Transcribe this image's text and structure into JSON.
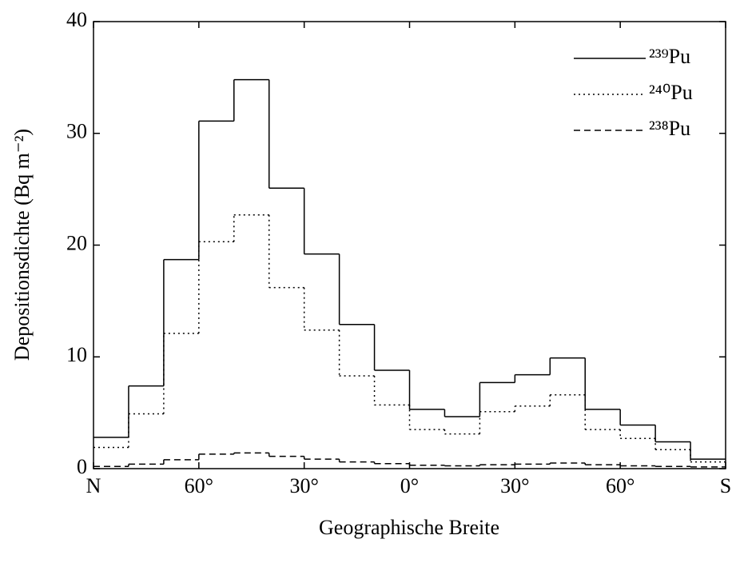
{
  "chart_data": {
    "type": "histogram",
    "xlabel": "Geographische Breite",
    "ylabel": "Depositionsdichte (Bq m⁻²)",
    "bins": [
      90,
      80,
      70,
      60,
      50,
      40,
      30,
      20,
      10,
      0,
      -10,
      -20,
      -30,
      -40,
      -50,
      -60,
      -70,
      -80,
      -90
    ],
    "series": [
      {
        "name": "²³⁹Pu",
        "color": "#000000",
        "dash": "solid",
        "values": [
          2.8,
          7.4,
          18.7,
          31.1,
          34.8,
          25.1,
          19.2,
          12.9,
          8.8,
          5.3,
          4.65,
          7.7,
          8.4,
          9.9,
          5.3,
          3.9,
          2.4,
          0.85
        ]
      },
      {
        "name": "²⁴⁰Pu",
        "color": "#000000",
        "dash": "dotted",
        "values": [
          1.9,
          4.9,
          12.1,
          20.3,
          22.7,
          16.2,
          12.4,
          8.3,
          5.7,
          3.5,
          3.1,
          5.1,
          5.6,
          6.6,
          3.5,
          2.7,
          1.7,
          0.6
        ]
      },
      {
        "name": "²³⁸Pu",
        "color": "#000000",
        "dash": "dashed",
        "values": [
          0.2,
          0.4,
          0.8,
          1.3,
          1.4,
          1.1,
          0.85,
          0.6,
          0.45,
          0.3,
          0.25,
          0.35,
          0.4,
          0.5,
          0.35,
          0.25,
          0.2,
          0.15
        ]
      }
    ],
    "xlim": [
      90,
      -90
    ],
    "xticks": [
      {
        "value": 90,
        "label": "N"
      },
      {
        "value": 60,
        "label": "60°"
      },
      {
        "value": 30,
        "label": "30°"
      },
      {
        "value": 0,
        "label": "0°"
      },
      {
        "value": -30,
        "label": "30°"
      },
      {
        "value": -60,
        "label": "60°"
      },
      {
        "value": -90,
        "label": "S"
      }
    ],
    "ylim": [
      0,
      40
    ],
    "yticks": [
      0,
      10,
      20,
      30,
      40
    ],
    "legend": "upper right"
  }
}
